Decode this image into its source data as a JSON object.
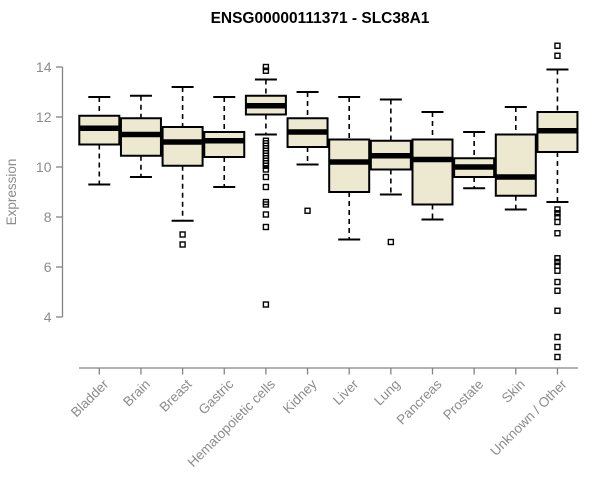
{
  "chart_data": {
    "type": "box",
    "title": "ENSG00000111371 - SLC38A1",
    "ylabel": "Expression",
    "xlabel": "",
    "yticks": [
      4,
      6,
      8,
      10,
      12,
      14
    ],
    "ylim": [
      2.2,
      15.1
    ],
    "grid": false,
    "legend": false,
    "categories": [
      "Bladder",
      "Brain",
      "Breast",
      "Gastric",
      "Hematopoietic cells",
      "Kidney",
      "Liver",
      "Lung",
      "Pancreas",
      "Prostate",
      "Skin",
      "Unknown / Other"
    ],
    "boxes": [
      {
        "low": 9.3,
        "q1": 10.9,
        "median": 11.55,
        "q3": 12.05,
        "high": 12.8,
        "outliers": []
      },
      {
        "low": 9.6,
        "q1": 10.45,
        "median": 11.3,
        "q3": 11.95,
        "high": 12.85,
        "outliers": []
      },
      {
        "low": 7.85,
        "q1": 10.05,
        "median": 11.0,
        "q3": 11.6,
        "high": 13.2,
        "outliers": [
          7.3,
          6.9
        ]
      },
      {
        "low": 9.2,
        "q1": 10.4,
        "median": 11.05,
        "q3": 11.4,
        "high": 12.8,
        "outliers": []
      },
      {
        "low": 11.3,
        "q1": 12.1,
        "median": 12.45,
        "q3": 12.85,
        "high": 13.5,
        "outliers": [
          14.0,
          13.85,
          11.05,
          10.95,
          10.85,
          10.75,
          10.65,
          10.55,
          10.45,
          10.35,
          10.25,
          10.15,
          10.05,
          9.9,
          9.6,
          9.2,
          8.6,
          8.5,
          8.1,
          7.6,
          4.5
        ]
      },
      {
        "low": 10.1,
        "q1": 10.8,
        "median": 11.4,
        "q3": 11.95,
        "high": 13.0,
        "outliers": [
          8.25
        ]
      },
      {
        "low": 7.1,
        "q1": 9.0,
        "median": 10.2,
        "q3": 11.1,
        "high": 12.8,
        "outliers": []
      },
      {
        "low": 8.9,
        "q1": 9.9,
        "median": 10.45,
        "q3": 11.05,
        "high": 12.7,
        "outliers": [
          7.0
        ]
      },
      {
        "low": 7.9,
        "q1": 8.5,
        "median": 10.3,
        "q3": 11.1,
        "high": 12.2,
        "outliers": []
      },
      {
        "low": 9.15,
        "q1": 9.6,
        "median": 10.0,
        "q3": 10.35,
        "high": 11.4,
        "outliers": []
      },
      {
        "low": 8.3,
        "q1": 8.85,
        "median": 9.6,
        "q3": 11.3,
        "high": 12.4,
        "outliers": []
      },
      {
        "low": 8.6,
        "q1": 10.6,
        "median": 11.45,
        "q3": 12.2,
        "high": 13.9,
        "outliers": [
          14.85,
          14.45,
          8.3,
          8.15,
          8.0,
          7.8,
          7.35,
          6.35,
          6.2,
          6.05,
          5.85,
          5.4,
          5.05,
          4.25,
          3.2,
          2.8,
          2.4
        ]
      }
    ],
    "colors": {
      "box_fill": "#EDE8D0",
      "box_stroke": "#000000",
      "median": "#000000",
      "whisker": "#000000",
      "axis_line": "#848484",
      "tick_label": "#8C8C8C",
      "title": "#000000",
      "background": "#FFFFFF"
    }
  }
}
